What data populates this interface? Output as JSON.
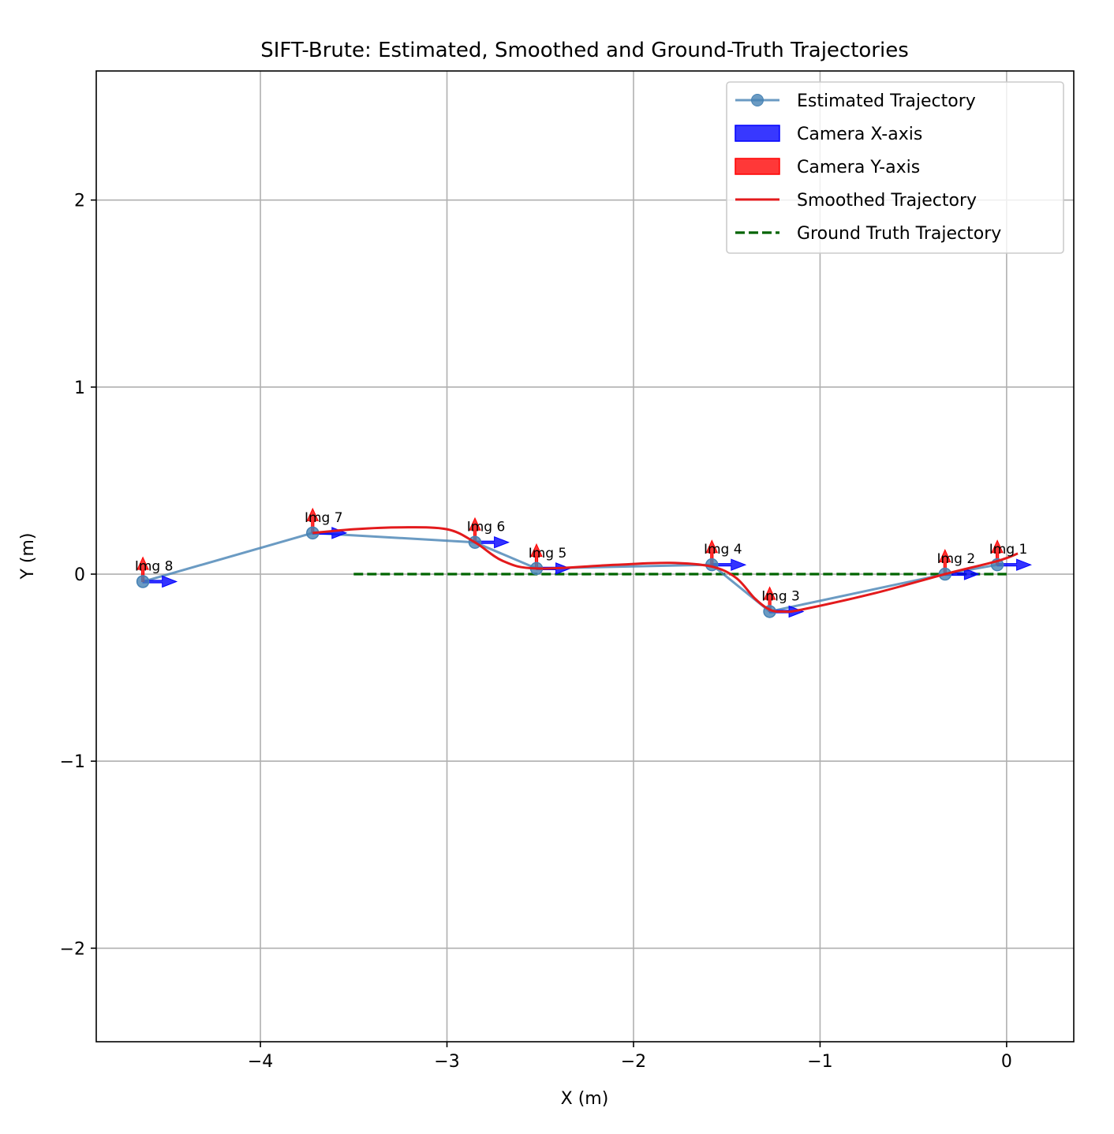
{
  "chart_data": {
    "type": "line",
    "title": "SIFT-Brute: Estimated, Smoothed and Ground-Truth Trajectories",
    "xlabel": "X (m)",
    "ylabel": "Y (m)",
    "xlim": [
      -4.88,
      0.36
    ],
    "ylim": [
      -2.5,
      2.69
    ],
    "x_ticks": [
      -4,
      -3,
      -2,
      -1,
      0
    ],
    "x_tick_labels": [
      "−4",
      "−3",
      "−2",
      "−1",
      "0"
    ],
    "y_ticks": [
      -2,
      -1,
      0,
      1,
      2
    ],
    "y_tick_labels": [
      "−2",
      "−1",
      "0",
      "1",
      "2"
    ],
    "grid": true,
    "legend_position": "top-right",
    "colors": {
      "estimated": "#4682b4",
      "camera_x": "#0000ff",
      "camera_y": "#ff0000",
      "smoothed": "#e31a1c",
      "ground_truth": "#006400"
    },
    "legend": [
      {
        "key": "estimated",
        "label": "Estimated Trajectory",
        "style": "line-marker"
      },
      {
        "key": "camera_x",
        "label": "Camera X-axis",
        "style": "patch"
      },
      {
        "key": "camera_y",
        "label": "Camera Y-axis",
        "style": "patch"
      },
      {
        "key": "smoothed",
        "label": "Smoothed Trajectory",
        "style": "line"
      },
      {
        "key": "ground_truth",
        "label": "Ground Truth Trajectory",
        "style": "dashed"
      }
    ],
    "estimated_trajectory": [
      {
        "label": "Img 1",
        "x": -0.05,
        "y": 0.05
      },
      {
        "label": "Img 2",
        "x": -0.33,
        "y": 0.0
      },
      {
        "label": "Img 3",
        "x": -1.27,
        "y": -0.2
      },
      {
        "label": "Img 4",
        "x": -1.58,
        "y": 0.05
      },
      {
        "label": "Img 5",
        "x": -2.52,
        "y": 0.03
      },
      {
        "label": "Img 6",
        "x": -2.85,
        "y": 0.17
      },
      {
        "label": "Img 7",
        "x": -3.72,
        "y": 0.22
      },
      {
        "label": "Img 8",
        "x": -4.63,
        "y": -0.04
      }
    ],
    "smoothed_trajectory": {
      "x": [
        0.06,
        -0.05,
        -0.33,
        -0.7,
        -1.1,
        -1.2,
        -1.27,
        -1.35,
        -1.45,
        -1.58,
        -1.8,
        -2.1,
        -2.52,
        -2.7,
        -2.85,
        -3.0,
        -3.25,
        -3.5,
        -3.72
      ],
      "y": [
        0.11,
        0.07,
        0.0,
        -0.1,
        -0.19,
        -0.2,
        -0.19,
        -0.13,
        -0.02,
        0.04,
        0.06,
        0.05,
        0.03,
        0.07,
        0.17,
        0.24,
        0.25,
        0.24,
        0.22
      ]
    },
    "ground_truth_trajectory": {
      "x": [
        -3.5,
        0.0
      ],
      "y": [
        0.0,
        0.0
      ]
    },
    "camera_axes": {
      "x_length": 0.18,
      "y_length": 0.13
    }
  }
}
